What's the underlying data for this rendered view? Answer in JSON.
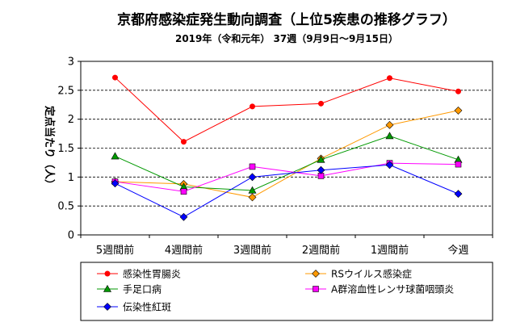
{
  "chart_data": {
    "type": "line",
    "title": "京都府感染症発生動向調査（上位5疾患の推移グラフ）",
    "subtitle": "2019年（令和元年） 37週（9月9日～9月15日）",
    "ylabel": "定点当たり（人）",
    "xlabel": "",
    "categories": [
      "5週間前",
      "4週間前",
      "3週間前",
      "2週間前",
      "1週間前",
      "今週"
    ],
    "y_ticks": [
      "0",
      "0.5",
      "1",
      "1.5",
      "2",
      "2.5",
      "3"
    ],
    "ylim": [
      0,
      3
    ],
    "grid": "horizontal dashed",
    "legend_position": "bottom",
    "series": [
      {
        "name": "感染性胃腸炎",
        "color": "#ff0000",
        "marker": "circle",
        "values": [
          2.72,
          1.61,
          2.22,
          2.27,
          2.71,
          2.48
        ]
      },
      {
        "name": "RSウイルス感染症",
        "color": "#ff9900",
        "marker": "diamond",
        "values": [
          0.92,
          0.88,
          0.65,
          1.32,
          1.9,
          2.15
        ]
      },
      {
        "name": "手足口病",
        "color": "#009900",
        "marker": "triangle",
        "values": [
          1.36,
          0.83,
          0.77,
          1.3,
          1.71,
          1.3
        ]
      },
      {
        "name": "A群溶血性レンサ球菌咽頭炎",
        "color": "#ff00ff",
        "marker": "square",
        "values": [
          0.92,
          0.75,
          1.18,
          1.02,
          1.24,
          1.22
        ]
      },
      {
        "name": "伝染性紅斑",
        "color": "#0000ff",
        "marker": "diamond",
        "values": [
          0.89,
          0.31,
          1.0,
          1.12,
          1.21,
          0.71
        ]
      }
    ]
  }
}
